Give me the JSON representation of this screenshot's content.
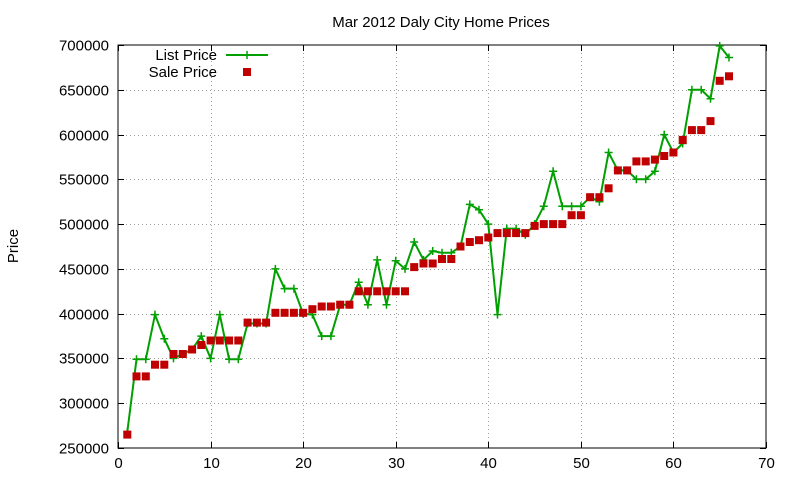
{
  "chart_data": {
    "type": "line",
    "title": "Mar 2012 Daly City Home Prices",
    "xlabel": "",
    "ylabel": "Price",
    "xlim": [
      0,
      70
    ],
    "ylim": [
      250000,
      700000
    ],
    "xticks": [
      0,
      10,
      20,
      30,
      40,
      50,
      60,
      70
    ],
    "yticks": [
      250000,
      300000,
      350000,
      400000,
      450000,
      500000,
      550000,
      600000,
      650000,
      700000
    ],
    "grid": true,
    "legend_position": "top-left",
    "x": [
      1,
      2,
      3,
      4,
      5,
      6,
      7,
      8,
      9,
      10,
      11,
      12,
      13,
      14,
      15,
      16,
      17,
      18,
      19,
      20,
      21,
      22,
      23,
      24,
      25,
      26,
      27,
      28,
      29,
      30,
      31,
      32,
      33,
      34,
      35,
      36,
      37,
      38,
      39,
      40,
      41,
      42,
      43,
      44,
      45,
      46,
      47,
      48,
      49,
      50,
      51,
      52,
      53,
      54,
      55,
      56,
      57,
      58,
      59,
      60,
      61,
      62,
      63,
      64,
      65,
      66
    ],
    "series": [
      {
        "name": "List Price",
        "style": "line-plus",
        "color": "#00a000",
        "values": [
          268000,
          349000,
          349000,
          399000,
          372000,
          350000,
          355000,
          360000,
          375000,
          350000,
          399000,
          349000,
          349000,
          389000,
          389000,
          389000,
          450000,
          428000,
          428000,
          400000,
          399000,
          375000,
          375000,
          410000,
          410000,
          435000,
          410000,
          460000,
          410000,
          459000,
          450000,
          480000,
          460000,
          470000,
          468000,
          468000,
          475000,
          522000,
          516000,
          500000,
          399000,
          495000,
          495000,
          488000,
          500000,
          520000,
          559000,
          520000,
          520000,
          520000,
          530000,
          525000,
          580000,
          560000,
          560000,
          550000,
          550000,
          559000,
          600000,
          580000,
          590000,
          650000,
          650000,
          640000,
          699000,
          686000
        ]
      },
      {
        "name": "Sale Price",
        "style": "square-points",
        "color": "#c00000",
        "values": [
          265000,
          330000,
          330000,
          343000,
          343000,
          355000,
          355000,
          360000,
          365000,
          370000,
          370000,
          370000,
          370000,
          390000,
          390000,
          390000,
          401000,
          401000,
          401000,
          401000,
          405000,
          408000,
          408000,
          410000,
          410000,
          425000,
          425000,
          425000,
          425000,
          425000,
          425000,
          452000,
          456000,
          456000,
          461000,
          461000,
          475000,
          480000,
          482000,
          485000,
          490000,
          490000,
          490000,
          490000,
          498000,
          500000,
          500000,
          500000,
          510000,
          510000,
          530000,
          530000,
          540000,
          560000,
          560000,
          570000,
          570000,
          572000,
          576000,
          580000,
          594000,
          605000,
          605000,
          615000,
          660000,
          665000
        ]
      }
    ]
  }
}
